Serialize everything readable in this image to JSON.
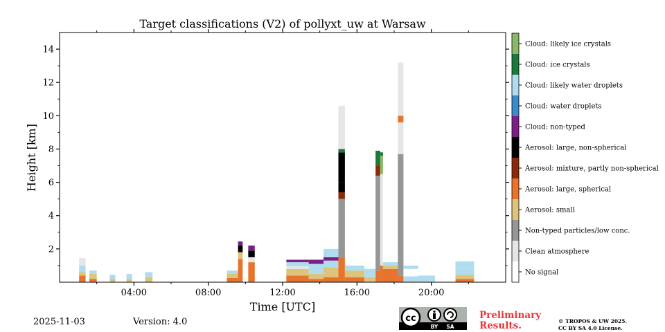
{
  "chart_data": {
    "type": "heatmap",
    "title": "Target classifications (V2) of pollyxt_uw at Warsaw",
    "xlabel": "Time [UTC]",
    "ylabel": "Height [km]",
    "xlim": [
      0,
      24
    ],
    "ylim": [
      0,
      15
    ],
    "x_ticks": [
      4,
      8,
      12,
      16,
      20
    ],
    "x_tick_labels": [
      "04:00",
      "08:00",
      "12:00",
      "16:00",
      "20:00"
    ],
    "y_ticks": [
      2,
      4,
      6,
      8,
      10,
      12,
      14
    ],
    "y_tick_labels": [
      "2",
      "4",
      "6",
      "8",
      "10",
      "12",
      "14"
    ],
    "classes": [
      {
        "id": 0,
        "label": "No signal",
        "color": "#ffffff"
      },
      {
        "id": 1,
        "label": "Clean atmosphere",
        "color": "#e6e6e6"
      },
      {
        "id": 2,
        "label": "Non-typed particles/low conc.",
        "color": "#969696"
      },
      {
        "id": 3,
        "label": "Aerosol: small",
        "color": "#ddc47a"
      },
      {
        "id": 4,
        "label": "Aerosol: large, spherical",
        "color": "#e8732d"
      },
      {
        "id": 5,
        "label": "Aerosol: mixture, partly non-spherical",
        "color": "#8a2a0a"
      },
      {
        "id": 6,
        "label": "Aerosol: large, non-spherical",
        "color": "#000000"
      },
      {
        "id": 7,
        "label": "Cloud: non-typed",
        "color": "#7b1f86"
      },
      {
        "id": 8,
        "label": "Cloud: water droplets",
        "color": "#3d8ac8"
      },
      {
        "id": 9,
        "label": "Cloud: likely water droplets",
        "color": "#b0dcf0"
      },
      {
        "id": 10,
        "label": "Cloud: ice crystals",
        "color": "#197a3a"
      },
      {
        "id": 11,
        "label": "Cloud: likely ice crystals",
        "color": "#8ab868"
      }
    ],
    "segments": [
      {
        "t0": 1.05,
        "t1": 1.4,
        "layers": [
          [
            0,
            0.4,
            4
          ],
          [
            0.4,
            0.6,
            3
          ],
          [
            0.6,
            1.0,
            9
          ],
          [
            1.0,
            1.45,
            1
          ]
        ]
      },
      {
        "t0": 1.6,
        "t1": 2.0,
        "layers": [
          [
            0,
            0.2,
            4
          ],
          [
            0.2,
            0.5,
            3
          ],
          [
            0.5,
            0.7,
            9
          ]
        ]
      },
      {
        "t0": 2.7,
        "t1": 3.0,
        "layers": [
          [
            0,
            0.2,
            3
          ],
          [
            0.2,
            0.45,
            9
          ]
        ]
      },
      {
        "t0": 3.6,
        "t1": 3.9,
        "layers": [
          [
            0,
            0.2,
            3
          ],
          [
            0.2,
            0.5,
            9
          ]
        ]
      },
      {
        "t0": 4.6,
        "t1": 5.0,
        "layers": [
          [
            0,
            0.3,
            3
          ],
          [
            0.3,
            0.6,
            9
          ]
        ]
      },
      {
        "t0": 9.0,
        "t1": 9.6,
        "layers": [
          [
            0,
            0.25,
            4
          ],
          [
            0.25,
            0.5,
            3
          ],
          [
            0.5,
            0.7,
            9
          ]
        ]
      },
      {
        "t0": 9.6,
        "t1": 9.85,
        "layers": [
          [
            0,
            1.4,
            4
          ],
          [
            1.4,
            1.8,
            3
          ],
          [
            1.8,
            2.2,
            6
          ],
          [
            2.2,
            2.45,
            7
          ]
        ]
      },
      {
        "t0": 10.15,
        "t1": 10.5,
        "layers": [
          [
            0,
            1.2,
            4
          ],
          [
            1.2,
            1.5,
            1
          ],
          [
            1.5,
            1.9,
            6
          ],
          [
            1.9,
            2.2,
            7
          ]
        ]
      },
      {
        "t0": 12.2,
        "t1": 13.4,
        "layers": [
          [
            0,
            0.4,
            4
          ],
          [
            0.4,
            0.8,
            3
          ],
          [
            0.8,
            0.95,
            1
          ],
          [
            0.95,
            1.2,
            9
          ],
          [
            1.2,
            1.35,
            7
          ]
        ]
      },
      {
        "t0": 13.4,
        "t1": 14.2,
        "layers": [
          [
            0,
            0.2,
            4
          ],
          [
            0.2,
            0.5,
            3
          ],
          [
            0.5,
            1.1,
            9
          ],
          [
            1.1,
            1.35,
            7
          ]
        ]
      },
      {
        "t0": 14.2,
        "t1": 15.0,
        "layers": [
          [
            0,
            0.3,
            4
          ],
          [
            0.3,
            0.9,
            3
          ],
          [
            0.9,
            1.3,
            9
          ],
          [
            1.3,
            1.5,
            7
          ],
          [
            1.5,
            2.0,
            9
          ]
        ]
      },
      {
        "t0": 15.0,
        "t1": 15.35,
        "layers": [
          [
            0,
            1.5,
            4
          ],
          [
            1.5,
            5.0,
            2
          ],
          [
            5.0,
            5.4,
            5
          ],
          [
            5.4,
            6.0,
            6
          ],
          [
            6.0,
            7.8,
            6
          ],
          [
            7.8,
            8.0,
            10
          ],
          [
            8.0,
            10.6,
            1
          ]
        ]
      },
      {
        "t0": 15.35,
        "t1": 16.4,
        "layers": [
          [
            0,
            0.3,
            4
          ],
          [
            0.3,
            0.7,
            3
          ],
          [
            0.7,
            1.0,
            9
          ]
        ]
      },
      {
        "t0": 16.4,
        "t1": 17.0,
        "layers": [
          [
            0,
            0.3,
            3
          ],
          [
            0.3,
            0.8,
            9
          ]
        ]
      },
      {
        "t0": 17.0,
        "t1": 17.25,
        "layers": [
          [
            0,
            0.7,
            4
          ],
          [
            0.7,
            6.4,
            2
          ],
          [
            6.4,
            7.0,
            5
          ],
          [
            7.0,
            7.9,
            10
          ]
        ]
      },
      {
        "t0": 17.25,
        "t1": 17.4,
        "layers": [
          [
            0,
            1.0,
            4
          ],
          [
            1.0,
            6.5,
            1
          ],
          [
            6.5,
            7.6,
            11
          ],
          [
            7.6,
            7.8,
            10
          ]
        ]
      },
      {
        "t0": 17.4,
        "t1": 18.2,
        "layers": [
          [
            0,
            0.8,
            4
          ],
          [
            0.8,
            1.0,
            3
          ],
          [
            1.0,
            1.2,
            9
          ]
        ]
      },
      {
        "t0": 18.2,
        "t1": 18.5,
        "layers": [
          [
            0,
            0.4,
            4
          ],
          [
            0.4,
            7.7,
            2
          ],
          [
            7.7,
            9.6,
            1
          ],
          [
            9.6,
            10.0,
            4
          ],
          [
            10.0,
            13.2,
            1
          ]
        ]
      },
      {
        "t0": 18.5,
        "t1": 19.3,
        "layers": [
          [
            0,
            0.35,
            9
          ],
          [
            0.8,
            1.0,
            9
          ]
        ]
      },
      {
        "t0": 19.3,
        "t1": 20.2,
        "layers": [
          [
            0,
            0.4,
            9
          ]
        ]
      },
      {
        "t0": 21.3,
        "t1": 22.3,
        "layers": [
          [
            0,
            0.2,
            4
          ],
          [
            0.2,
            0.45,
            3
          ],
          [
            0.45,
            0.8,
            9
          ],
          [
            0.8,
            1.25,
            9
          ]
        ]
      }
    ]
  },
  "footer": {
    "date": "2025-11-03",
    "version": "Version: 4.0",
    "preliminary_line1": "Preliminary",
    "preliminary_line2": "Results.",
    "copyright_line1": "© TROPOS & UW 2025.",
    "copyright_line2": "CC BY SA 4.0 License.",
    "license_badge": "cc-by-sa-icon",
    "badge_by": "BY",
    "badge_sa": "SA",
    "badge_cc": "cc"
  }
}
